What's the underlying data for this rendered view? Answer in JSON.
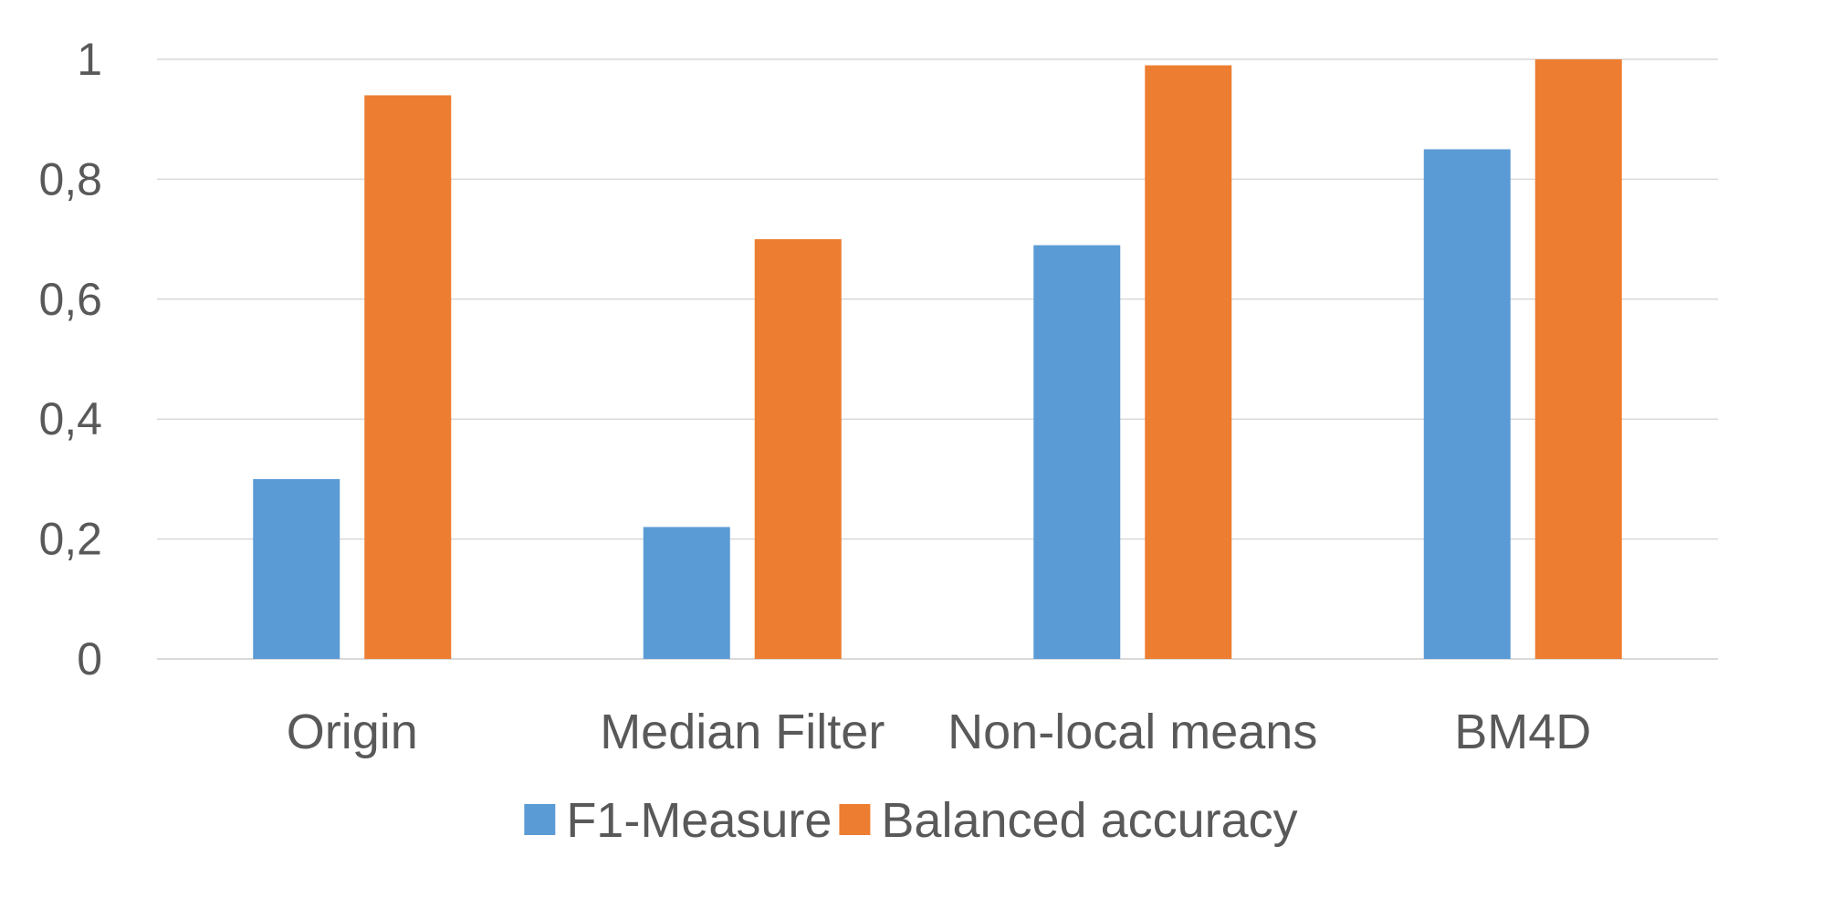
{
  "chart_data": {
    "type": "bar",
    "title": "",
    "xlabel": "",
    "ylabel": "",
    "categories": [
      "Origin",
      "Median Filter",
      "Non-local means",
      "BM4D"
    ],
    "series": [
      {
        "name": "F1-Measure",
        "values": [
          0.3,
          0.22,
          0.69,
          0.85
        ],
        "color": "#5b9bd5"
      },
      {
        "name": "Balanced accuracy",
        "values": [
          0.94,
          0.7,
          0.99,
          1.0
        ],
        "color": "#ed7d31"
      }
    ],
    "ylim": [
      0,
      1
    ],
    "yticks": [
      0,
      0.2,
      0.4,
      0.6,
      0.8,
      1
    ],
    "ytick_labels": [
      "0",
      "0,2",
      "0,4",
      "0,6",
      "0,8",
      "1"
    ],
    "grid": true,
    "legend_position": "bottom"
  }
}
